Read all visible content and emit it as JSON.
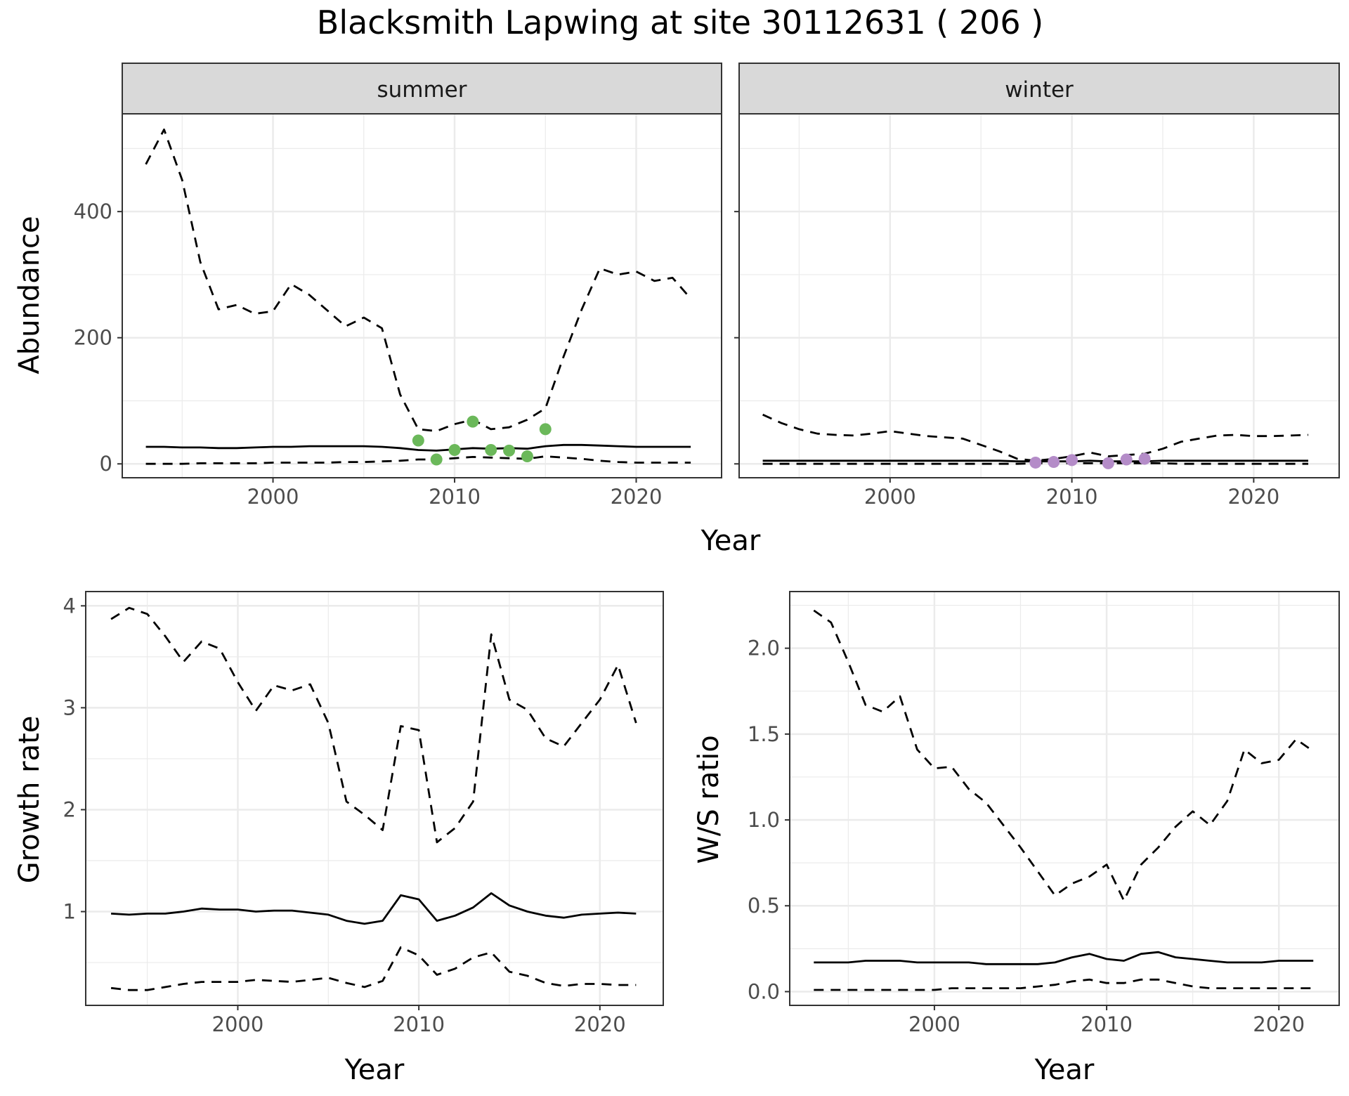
{
  "title": "Blacksmith Lapwing at site 30112631 ( 206 )",
  "colors": {
    "summer_points": "#6bb85a",
    "winter_points": "#b48cc8",
    "lines": "#000000",
    "grid": "#ebebeb",
    "strip": "#d9d9d9"
  },
  "chart_data": [
    {
      "id": "abundance_summer",
      "type": "line",
      "facet": "summer",
      "ylabel": "Abundance",
      "xlabel": "Year",
      "xlim": [
        1991.7,
        2024.7
      ],
      "ylim": [
        -22,
        555
      ],
      "xticks": [
        2000,
        2010,
        2020
      ],
      "yticks": [
        0,
        200,
        400
      ],
      "grid": true,
      "series": [
        {
          "style": "dashed",
          "x": [
            1993,
            1994,
            1995,
            1996,
            1997,
            1998,
            1999,
            2000,
            2001,
            2002,
            2003,
            2004,
            2005,
            2006,
            2007,
            2008,
            2009,
            2010,
            2011,
            2012,
            2013,
            2014,
            2015,
            2016,
            2017,
            2018,
            2019,
            2020,
            2021,
            2022,
            2023
          ],
          "y": [
            475,
            530,
            450,
            320,
            245,
            252,
            238,
            242,
            285,
            268,
            243,
            218,
            232,
            215,
            110,
            55,
            52,
            63,
            70,
            55,
            58,
            70,
            88,
            170,
            245,
            310,
            300,
            305,
            290,
            295,
            262
          ]
        },
        {
          "style": "solid",
          "x": [
            1993,
            1994,
            1995,
            1996,
            1997,
            1998,
            1999,
            2000,
            2001,
            2002,
            2003,
            2004,
            2005,
            2006,
            2007,
            2008,
            2009,
            2010,
            2011,
            2012,
            2013,
            2014,
            2015,
            2016,
            2017,
            2018,
            2019,
            2020,
            2021,
            2022,
            2023
          ],
          "y": [
            27,
            27,
            26,
            26,
            25,
            25,
            26,
            27,
            27,
            28,
            28,
            28,
            28,
            27,
            25,
            22,
            21,
            23,
            25,
            24,
            25,
            24,
            28,
            30,
            30,
            29,
            28,
            27,
            27,
            27,
            27
          ]
        },
        {
          "style": "dashed",
          "x": [
            1993,
            1994,
            1995,
            1996,
            1997,
            1998,
            1999,
            2000,
            2001,
            2002,
            2003,
            2004,
            2005,
            2006,
            2007,
            2008,
            2009,
            2010,
            2011,
            2012,
            2013,
            2014,
            2015,
            2016,
            2017,
            2018,
            2019,
            2020,
            2021,
            2022,
            2023
          ],
          "y": [
            0,
            0,
            0,
            1,
            1,
            1,
            1,
            2,
            2,
            2,
            2,
            3,
            3,
            4,
            5,
            7,
            7,
            9,
            11,
            10,
            9,
            8,
            12,
            10,
            8,
            5,
            3,
            2,
            2,
            2,
            2
          ]
        }
      ],
      "points": {
        "x": [
          2008,
          2009,
          2010,
          2011,
          2012,
          2013,
          2014,
          2015
        ],
        "y": [
          37,
          7,
          22,
          67,
          22,
          21,
          12,
          55
        ]
      }
    },
    {
      "id": "abundance_winter",
      "type": "line",
      "facet": "winter",
      "xlim": [
        1991.7,
        2024.7
      ],
      "ylim": [
        -22,
        555
      ],
      "xticks": [
        2000,
        2010,
        2020
      ],
      "yticks": [
        0,
        200,
        400
      ],
      "grid": true,
      "series": [
        {
          "style": "dashed",
          "x": [
            1993,
            1994,
            1995,
            1996,
            1997,
            1998,
            1999,
            2000,
            2001,
            2002,
            2003,
            2004,
            2005,
            2006,
            2007,
            2008,
            2009,
            2010,
            2011,
            2012,
            2013,
            2014,
            2015,
            2016,
            2017,
            2018,
            2019,
            2020,
            2021,
            2022,
            2023
          ],
          "y": [
            78,
            65,
            55,
            48,
            46,
            45,
            48,
            52,
            48,
            44,
            42,
            40,
            30,
            20,
            8,
            5,
            8,
            12,
            18,
            12,
            14,
            16,
            24,
            35,
            40,
            45,
            46,
            44,
            44,
            45,
            46
          ]
        },
        {
          "style": "solid",
          "x": [
            1993,
            1994,
            1995,
            1996,
            1997,
            1998,
            1999,
            2000,
            2001,
            2002,
            2003,
            2004,
            2005,
            2006,
            2007,
            2008,
            2009,
            2010,
            2011,
            2012,
            2013,
            2014,
            2015,
            2016,
            2017,
            2018,
            2019,
            2020,
            2021,
            2022,
            2023
          ],
          "y": [
            5,
            5,
            5,
            5,
            5,
            5,
            5,
            5,
            5,
            5,
            5,
            5,
            5,
            5,
            4,
            4,
            4,
            4,
            5,
            4,
            4,
            4,
            5,
            5,
            5,
            5,
            5,
            5,
            5,
            5,
            5
          ]
        },
        {
          "style": "dashed",
          "x": [
            1993,
            1994,
            1995,
            1996,
            1997,
            1998,
            1999,
            2000,
            2001,
            2002,
            2003,
            2004,
            2005,
            2006,
            2007,
            2008,
            2009,
            2010,
            2011,
            2012,
            2013,
            2014,
            2015,
            2016,
            2017,
            2018,
            2019,
            2020,
            2021,
            2022,
            2023
          ],
          "y": [
            0,
            0,
            0,
            0,
            0,
            0,
            0,
            0,
            0,
            0,
            0,
            0,
            0,
            0,
            0,
            1,
            1,
            1,
            1,
            1,
            1,
            1,
            1,
            0,
            0,
            0,
            0,
            0,
            0,
            0,
            0
          ]
        }
      ],
      "points": {
        "x": [
          2008,
          2009,
          2010,
          2012,
          2013,
          2014
        ],
        "y": [
          2,
          3,
          6,
          1,
          7,
          8
        ]
      }
    },
    {
      "id": "growth_rate",
      "type": "line",
      "xlabel": "Year",
      "ylabel": "Growth rate",
      "xlim": [
        1991.6,
        2023.5
      ],
      "ylim": [
        0.08,
        4.14
      ],
      "xticks": [
        2000,
        2010,
        2020
      ],
      "yticks": [
        1,
        2,
        3,
        4
      ],
      "grid": true,
      "series": [
        {
          "style": "dashed",
          "x": [
            1993,
            1994,
            1995,
            1996,
            1997,
            1998,
            1999,
            2000,
            2001,
            2002,
            2003,
            2004,
            2005,
            2006,
            2007,
            2008,
            2009,
            2010,
            2011,
            2012,
            2013,
            2014,
            2015,
            2016,
            2017,
            2018,
            2019,
            2020,
            2021,
            2022
          ],
          "y": [
            3.87,
            3.98,
            3.92,
            3.7,
            3.45,
            3.65,
            3.58,
            3.25,
            2.97,
            3.22,
            3.17,
            3.23,
            2.85,
            2.08,
            1.95,
            1.8,
            2.82,
            2.78,
            1.68,
            1.82,
            2.08,
            3.72,
            3.08,
            2.98,
            2.7,
            2.62,
            2.85,
            3.08,
            3.42,
            2.85
          ]
        },
        {
          "style": "solid",
          "x": [
            1993,
            1994,
            1995,
            1996,
            1997,
            1998,
            1999,
            2000,
            2001,
            2002,
            2003,
            2004,
            2005,
            2006,
            2007,
            2008,
            2009,
            2010,
            2011,
            2012,
            2013,
            2014,
            2015,
            2016,
            2017,
            2018,
            2019,
            2020,
            2021,
            2022
          ],
          "y": [
            0.98,
            0.97,
            0.98,
            0.98,
            1.0,
            1.03,
            1.02,
            1.02,
            1.0,
            1.01,
            1.01,
            0.99,
            0.97,
            0.91,
            0.88,
            0.91,
            1.16,
            1.12,
            0.91,
            0.96,
            1.04,
            1.18,
            1.06,
            1.0,
            0.96,
            0.94,
            0.97,
            0.98,
            0.99,
            0.98
          ]
        },
        {
          "style": "dashed",
          "x": [
            1993,
            1994,
            1995,
            1996,
            1997,
            1998,
            1999,
            2000,
            2001,
            2002,
            2003,
            2004,
            2005,
            2006,
            2007,
            2008,
            2009,
            2010,
            2011,
            2012,
            2013,
            2014,
            2015,
            2016,
            2017,
            2018,
            2019,
            2020,
            2021,
            2022
          ],
          "y": [
            0.25,
            0.23,
            0.23,
            0.26,
            0.29,
            0.31,
            0.31,
            0.31,
            0.33,
            0.32,
            0.31,
            0.33,
            0.35,
            0.3,
            0.26,
            0.32,
            0.65,
            0.57,
            0.38,
            0.44,
            0.55,
            0.6,
            0.41,
            0.37,
            0.3,
            0.27,
            0.29,
            0.29,
            0.28,
            0.28
          ]
        }
      ]
    },
    {
      "id": "ws_ratio",
      "type": "line",
      "xlabel": "Year",
      "ylabel": "W/S ratio",
      "xlim": [
        1991.6,
        2023.5
      ],
      "ylim": [
        -0.08,
        2.33
      ],
      "xticks": [
        2000,
        2010,
        2020
      ],
      "yticks": [
        0.0,
        0.5,
        1.0,
        1.5,
        2.0
      ],
      "ytick_labels": [
        "0.0",
        "0.5",
        "1.0",
        "1.5",
        "2.0"
      ],
      "grid": true,
      "series": [
        {
          "style": "dashed",
          "x": [
            1993,
            1994,
            1995,
            1996,
            1997,
            1998,
            1999,
            2000,
            2001,
            2002,
            2003,
            2004,
            2005,
            2006,
            2007,
            2008,
            2009,
            2010,
            2011,
            2012,
            2013,
            2014,
            2015,
            2016,
            2017,
            2018,
            2019,
            2020,
            2021,
            2022
          ],
          "y": [
            2.22,
            2.15,
            1.92,
            1.67,
            1.63,
            1.72,
            1.41,
            1.3,
            1.31,
            1.18,
            1.1,
            0.97,
            0.84,
            0.7,
            0.56,
            0.63,
            0.67,
            0.74,
            0.53,
            0.74,
            0.84,
            0.96,
            1.05,
            0.97,
            1.11,
            1.41,
            1.33,
            1.35,
            1.47,
            1.4
          ]
        },
        {
          "style": "solid",
          "x": [
            1993,
            1994,
            1995,
            1996,
            1997,
            1998,
            1999,
            2000,
            2001,
            2002,
            2003,
            2004,
            2005,
            2006,
            2007,
            2008,
            2009,
            2010,
            2011,
            2012,
            2013,
            2014,
            2015,
            2016,
            2017,
            2018,
            2019,
            2020,
            2021,
            2022
          ],
          "y": [
            0.17,
            0.17,
            0.17,
            0.18,
            0.18,
            0.18,
            0.17,
            0.17,
            0.17,
            0.17,
            0.16,
            0.16,
            0.16,
            0.16,
            0.17,
            0.2,
            0.22,
            0.19,
            0.18,
            0.22,
            0.23,
            0.2,
            0.19,
            0.18,
            0.17,
            0.17,
            0.17,
            0.18,
            0.18,
            0.18
          ]
        },
        {
          "style": "dashed",
          "x": [
            1993,
            1994,
            1995,
            1996,
            1997,
            1998,
            1999,
            2000,
            2001,
            2002,
            2003,
            2004,
            2005,
            2006,
            2007,
            2008,
            2009,
            2010,
            2011,
            2012,
            2013,
            2014,
            2015,
            2016,
            2017,
            2018,
            2019,
            2020,
            2021,
            2022
          ],
          "y": [
            0.01,
            0.01,
            0.01,
            0.01,
            0.01,
            0.01,
            0.01,
            0.01,
            0.02,
            0.02,
            0.02,
            0.02,
            0.02,
            0.03,
            0.04,
            0.06,
            0.07,
            0.05,
            0.05,
            0.07,
            0.07,
            0.05,
            0.03,
            0.02,
            0.02,
            0.02,
            0.02,
            0.02,
            0.02,
            0.02
          ]
        }
      ]
    }
  ]
}
